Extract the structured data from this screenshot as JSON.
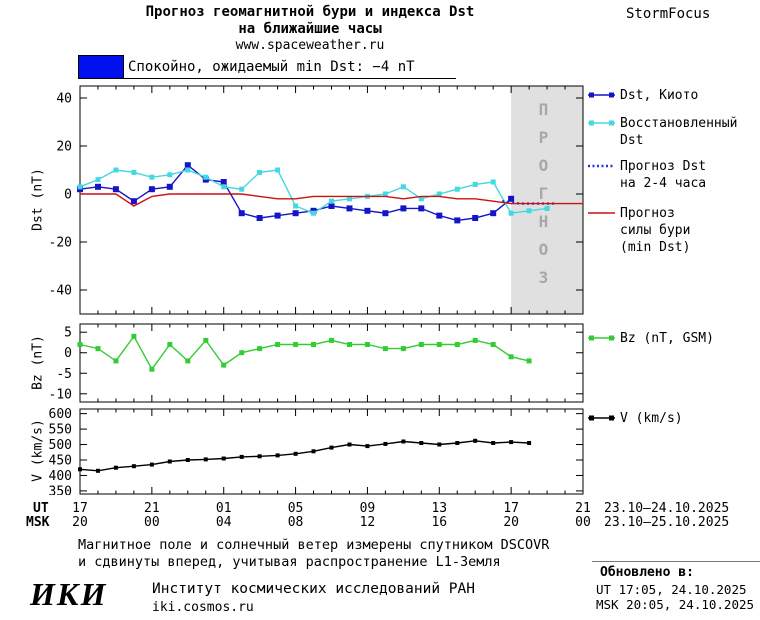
{
  "header": {
    "title_line1": "Прогноз геомагнитной бури и индекса Dst",
    "title_line2": "на ближайшие часы",
    "site": "www.spaceweather.ru",
    "brand": "StormFocus"
  },
  "status": {
    "label": "Спокойно, ожидаемый min Dst: −4 nT",
    "box_color": "#0011ee"
  },
  "forecast_region_label": "ПРОГНОЗ",
  "legend": {
    "dst_kyoto": "Dst, Киото",
    "restored_line1": "Восстановленный",
    "restored_line2": "Dst",
    "forecast_dst_line1": "Прогноз Dst",
    "forecast_dst_line2": "на 2-4 часа",
    "forecast_storm_line1": "Прогноз",
    "forecast_storm_line2": "силы бури",
    "forecast_storm_line3": "(min Dst)",
    "bz": "Bz (nT, GSM)",
    "v": "V (km/s)"
  },
  "axes": {
    "dst_ylabel": "Dst (nT)",
    "bz_ylabel": "Bz (nT)",
    "v_ylabel": "V (km/s)",
    "ut_label": "UT",
    "msk_label": "MSK",
    "ut_ticks": [
      "17",
      "21",
      "01",
      "05",
      "09",
      "13",
      "17",
      "21"
    ],
    "msk_ticks": [
      "20",
      "00",
      "04",
      "08",
      "12",
      "16",
      "20",
      "00"
    ],
    "ut_daterange": "23.10–24.10.2025",
    "msk_daterange": "23.10–25.10.2025"
  },
  "footer": {
    "note_line1": "Магнитное поле и солнечный ветер измерены спутником DSCOVR",
    "note_line2": "и сдвинуты вперед, учитывая распространение L1-Земля",
    "updated_label": "Обновлено в:",
    "updated_ut": "UT  17:05, 24.10.2025",
    "updated_msk": "MSK 20:05, 24.10.2025",
    "logo": "ИКИ",
    "institute": "Институт космических исследований РАН",
    "institute_site": "iki.cosmos.ru"
  },
  "chart_data": [
    {
      "type": "line",
      "name": "Dst index and forecast",
      "ylabel": "Dst (nT)",
      "ylim": [
        -50,
        45
      ],
      "yticks": [
        -40,
        -20,
        0,
        20,
        40
      ],
      "xlim": [
        0,
        28
      ],
      "xticks": [
        0,
        4,
        8,
        12,
        16,
        20,
        24,
        28
      ],
      "x_unit": "hours since 17:00 UT 23.10.2025",
      "forecast_region": [
        24,
        28
      ],
      "series": [
        {
          "name": "Dst, Киото",
          "color": "#1515c8",
          "marker": "square",
          "marker_size": 6,
          "x": [
            0,
            1,
            2,
            3,
            4,
            5,
            6,
            7,
            8,
            9,
            10,
            11,
            12,
            13,
            14,
            15,
            16,
            17,
            18,
            19,
            20,
            21,
            22,
            23,
            24
          ],
          "y": [
            2,
            3,
            2,
            -3,
            2,
            3,
            12,
            6,
            5,
            -8,
            -10,
            -9,
            -8,
            -7,
            -5,
            -6,
            -7,
            -8,
            -6,
            -6,
            -9,
            -11,
            -10,
            -8,
            -2
          ]
        },
        {
          "name": "Восстановленный Dst",
          "color": "#44d8e0",
          "marker": "square",
          "marker_size": 5,
          "x": [
            0,
            1,
            2,
            3,
            4,
            5,
            6,
            7,
            8,
            9,
            10,
            11,
            12,
            13,
            14,
            15,
            16,
            17,
            18,
            19,
            20,
            21,
            22,
            23,
            24,
            25,
            26
          ],
          "y": [
            3,
            6,
            10,
            9,
            7,
            8,
            10,
            7,
            3,
            2,
            9,
            10,
            -5,
            -8,
            -3,
            -2,
            -1,
            0,
            3,
            -2,
            0,
            2,
            4,
            5,
            -8,
            -7,
            -6
          ]
        },
        {
          "name": "Прогноз Dst на 2-4 часа",
          "color": "#2233dd",
          "style": "dotted",
          "x": [
            23.5,
            24.5,
            25.5,
            26.5
          ],
          "y": [
            -3,
            -4,
            -4,
            -4
          ]
        },
        {
          "name": "Прогноз силы бури (min Dst)",
          "color": "#cc1111",
          "x": [
            0,
            1,
            2,
            3,
            4,
            5,
            6,
            7,
            8,
            9,
            10,
            11,
            12,
            13,
            14,
            15,
            16,
            17,
            18,
            19,
            20,
            21,
            22,
            23,
            24,
            25,
            26,
            27,
            28
          ],
          "y": [
            0,
            0,
            0,
            -5,
            -1,
            0,
            0,
            0,
            0,
            0,
            -1,
            -2,
            -2,
            -1,
            -1,
            -1,
            -1,
            -1,
            -2,
            -1,
            -1,
            -2,
            -2,
            -3,
            -4,
            -4,
            -4,
            -4,
            -4
          ]
        }
      ]
    },
    {
      "type": "line",
      "name": "Bz GSM",
      "ylabel": "Bz (nT)",
      "ylim": [
        -12,
        7
      ],
      "yticks": [
        -10,
        -5,
        0,
        5
      ],
      "xlim": [
        0,
        28
      ],
      "xticks": [
        0,
        4,
        8,
        12,
        16,
        20,
        24,
        28
      ],
      "series": [
        {
          "name": "Bz (nT, GSM)",
          "color": "#33cc33",
          "marker": "square",
          "marker_size": 5,
          "x": [
            0,
            1,
            2,
            3,
            4,
            5,
            6,
            7,
            8,
            9,
            10,
            11,
            12,
            13,
            14,
            15,
            16,
            17,
            18,
            19,
            20,
            21,
            22,
            23,
            24,
            25
          ],
          "y": [
            2,
            1,
            -2,
            4,
            -4,
            2,
            -2,
            3,
            -3,
            0,
            1,
            2,
            2,
            2,
            3,
            2,
            2,
            1,
            1,
            2,
            2,
            2,
            3,
            2,
            -1,
            -2
          ]
        }
      ]
    },
    {
      "type": "line",
      "name": "Solar wind speed",
      "ylabel": "V (km/s)",
      "ylim": [
        340,
        615
      ],
      "yticks": [
        350,
        400,
        450,
        500,
        550,
        600
      ],
      "xlim": [
        0,
        28
      ],
      "xticks": [
        0,
        4,
        8,
        12,
        16,
        20,
        24,
        28
      ],
      "series": [
        {
          "name": "V (km/s)",
          "color": "#000000",
          "marker": "square",
          "marker_size": 4,
          "x": [
            0,
            1,
            2,
            3,
            4,
            5,
            6,
            7,
            8,
            9,
            10,
            11,
            12,
            13,
            14,
            15,
            16,
            17,
            18,
            19,
            20,
            21,
            22,
            23,
            24,
            25
          ],
          "y": [
            420,
            415,
            425,
            430,
            435,
            445,
            450,
            452,
            455,
            460,
            462,
            465,
            470,
            478,
            490,
            500,
            495,
            502,
            510,
            505,
            500,
            505,
            512,
            505,
            508,
            505
          ]
        }
      ]
    }
  ]
}
